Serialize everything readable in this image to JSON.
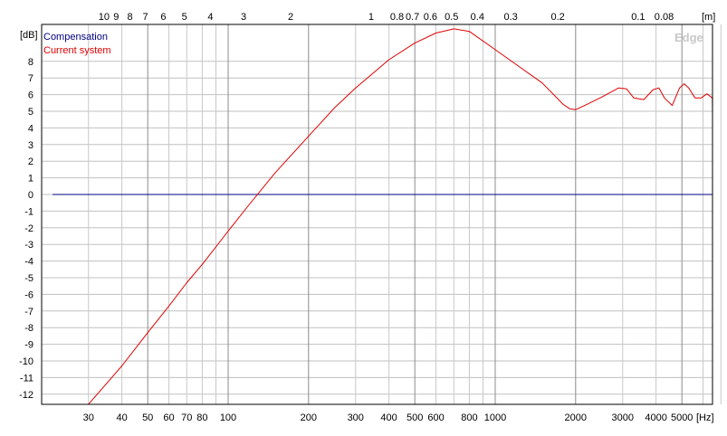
{
  "chart_data": {
    "type": "line",
    "x_scale": "log",
    "x_unit_label": "[Hz]",
    "top_unit_label": "[m]",
    "y_unit_label": "[dB]",
    "watermark": "Edge",
    "ylim": [
      -12.5,
      10.1
    ],
    "xlim": [
      22,
      1000000
    ],
    "grid": true,
    "legend_position": "top-left",
    "x_ticks": [
      {
        "value": 30,
        "label": "30",
        "major": false
      },
      {
        "value": 40,
        "label": "40",
        "major": false
      },
      {
        "value": 50,
        "label": "50",
        "major": true
      },
      {
        "value": 60,
        "label": "60",
        "major": false
      },
      {
        "value": 70,
        "label": "70",
        "major": false
      },
      {
        "value": 80,
        "label": "80",
        "major": false
      },
      {
        "value": 90,
        "label": "",
        "major": false
      },
      {
        "value": 100,
        "label": "100",
        "major": true
      },
      {
        "value": 200,
        "label": "200",
        "major": true
      },
      {
        "value": 300,
        "label": "300",
        "major": false
      },
      {
        "value": 400,
        "label": "400",
        "major": false
      },
      {
        "value": 500,
        "label": "500",
        "major": true
      },
      {
        "value": 600,
        "label": "600",
        "major": false
      },
      {
        "value": 700,
        "label": "",
        "major": false
      },
      {
        "value": 800,
        "label": "800",
        "major": false
      },
      {
        "value": 900,
        "label": "",
        "major": false
      },
      {
        "value": 1000,
        "label": "1000",
        "major": true
      },
      {
        "value": 2000,
        "label": "2000",
        "major": true
      },
      {
        "value": 3000,
        "label": "3000",
        "major": false
      },
      {
        "value": 4000,
        "label": "4000",
        "major": false
      },
      {
        "value": 5000,
        "label": "5000",
        "major": true
      },
      {
        "value": 6000,
        "label": "",
        "major": false
      },
      {
        "value": 7000,
        "label": "",
        "major": false
      }
    ],
    "top_ticks": [
      {
        "value": 34.3,
        "label": "10"
      },
      {
        "value": 38.1,
        "label": "9"
      },
      {
        "value": 42.9,
        "label": "8"
      },
      {
        "value": 49,
        "label": "7"
      },
      {
        "value": 57.2,
        "label": "6"
      },
      {
        "value": 68.6,
        "label": "5"
      },
      {
        "value": 85.8,
        "label": "4"
      },
      {
        "value": 114.3,
        "label": "3"
      },
      {
        "value": 171.5,
        "label": "2"
      },
      {
        "value": 343,
        "label": "1"
      },
      {
        "value": 428.8,
        "label": "0.8"
      },
      {
        "value": 490,
        "label": "0.7"
      },
      {
        "value": 571.7,
        "label": "0.6"
      },
      {
        "value": 686,
        "label": "0.5"
      },
      {
        "value": 857.5,
        "label": "0.4"
      },
      {
        "value": 1143.3,
        "label": "0.3"
      },
      {
        "value": 1715,
        "label": "0.2"
      },
      {
        "value": 3430,
        "label": "0.1"
      },
      {
        "value": 4287.5,
        "label": "0.08"
      }
    ],
    "y_ticks": [
      8,
      7,
      6,
      5,
      4,
      3,
      2,
      1,
      0,
      -1,
      -2,
      -3,
      -4,
      -5,
      -6,
      -7,
      -8,
      -9,
      -10,
      -11,
      -12
    ],
    "series": [
      {
        "name": "Compensation",
        "color": "#000080",
        "x": [
          22,
          6900
        ],
        "y": [
          0,
          0
        ]
      },
      {
        "name": "Current system",
        "color": "#e00000",
        "x": [
          30,
          40,
          50,
          60,
          70,
          80,
          100,
          120,
          150,
          200,
          250,
          300,
          400,
          500,
          600,
          700,
          800,
          1000,
          1200,
          1500,
          1800,
          1900,
          2000,
          2200,
          2500,
          2900,
          3100,
          3300,
          3600,
          3900,
          4100,
          4300,
          4600,
          4900,
          5100,
          5300,
          5600,
          5900,
          6200,
          6500,
          6900
        ],
        "y": [
          -12.6,
          -10.3,
          -8.3,
          -6.7,
          -5.3,
          -4.2,
          -2.2,
          -0.6,
          1.3,
          3.5,
          5.2,
          6.4,
          8.1,
          9.1,
          9.7,
          9.95,
          9.8,
          8.7,
          7.8,
          6.7,
          5.4,
          5.15,
          5.1,
          5.4,
          5.85,
          6.4,
          6.35,
          5.8,
          5.7,
          6.3,
          6.4,
          5.8,
          5.35,
          6.4,
          6.65,
          6.4,
          5.8,
          5.8,
          6.05,
          5.8,
          4.95
        ]
      }
    ]
  }
}
